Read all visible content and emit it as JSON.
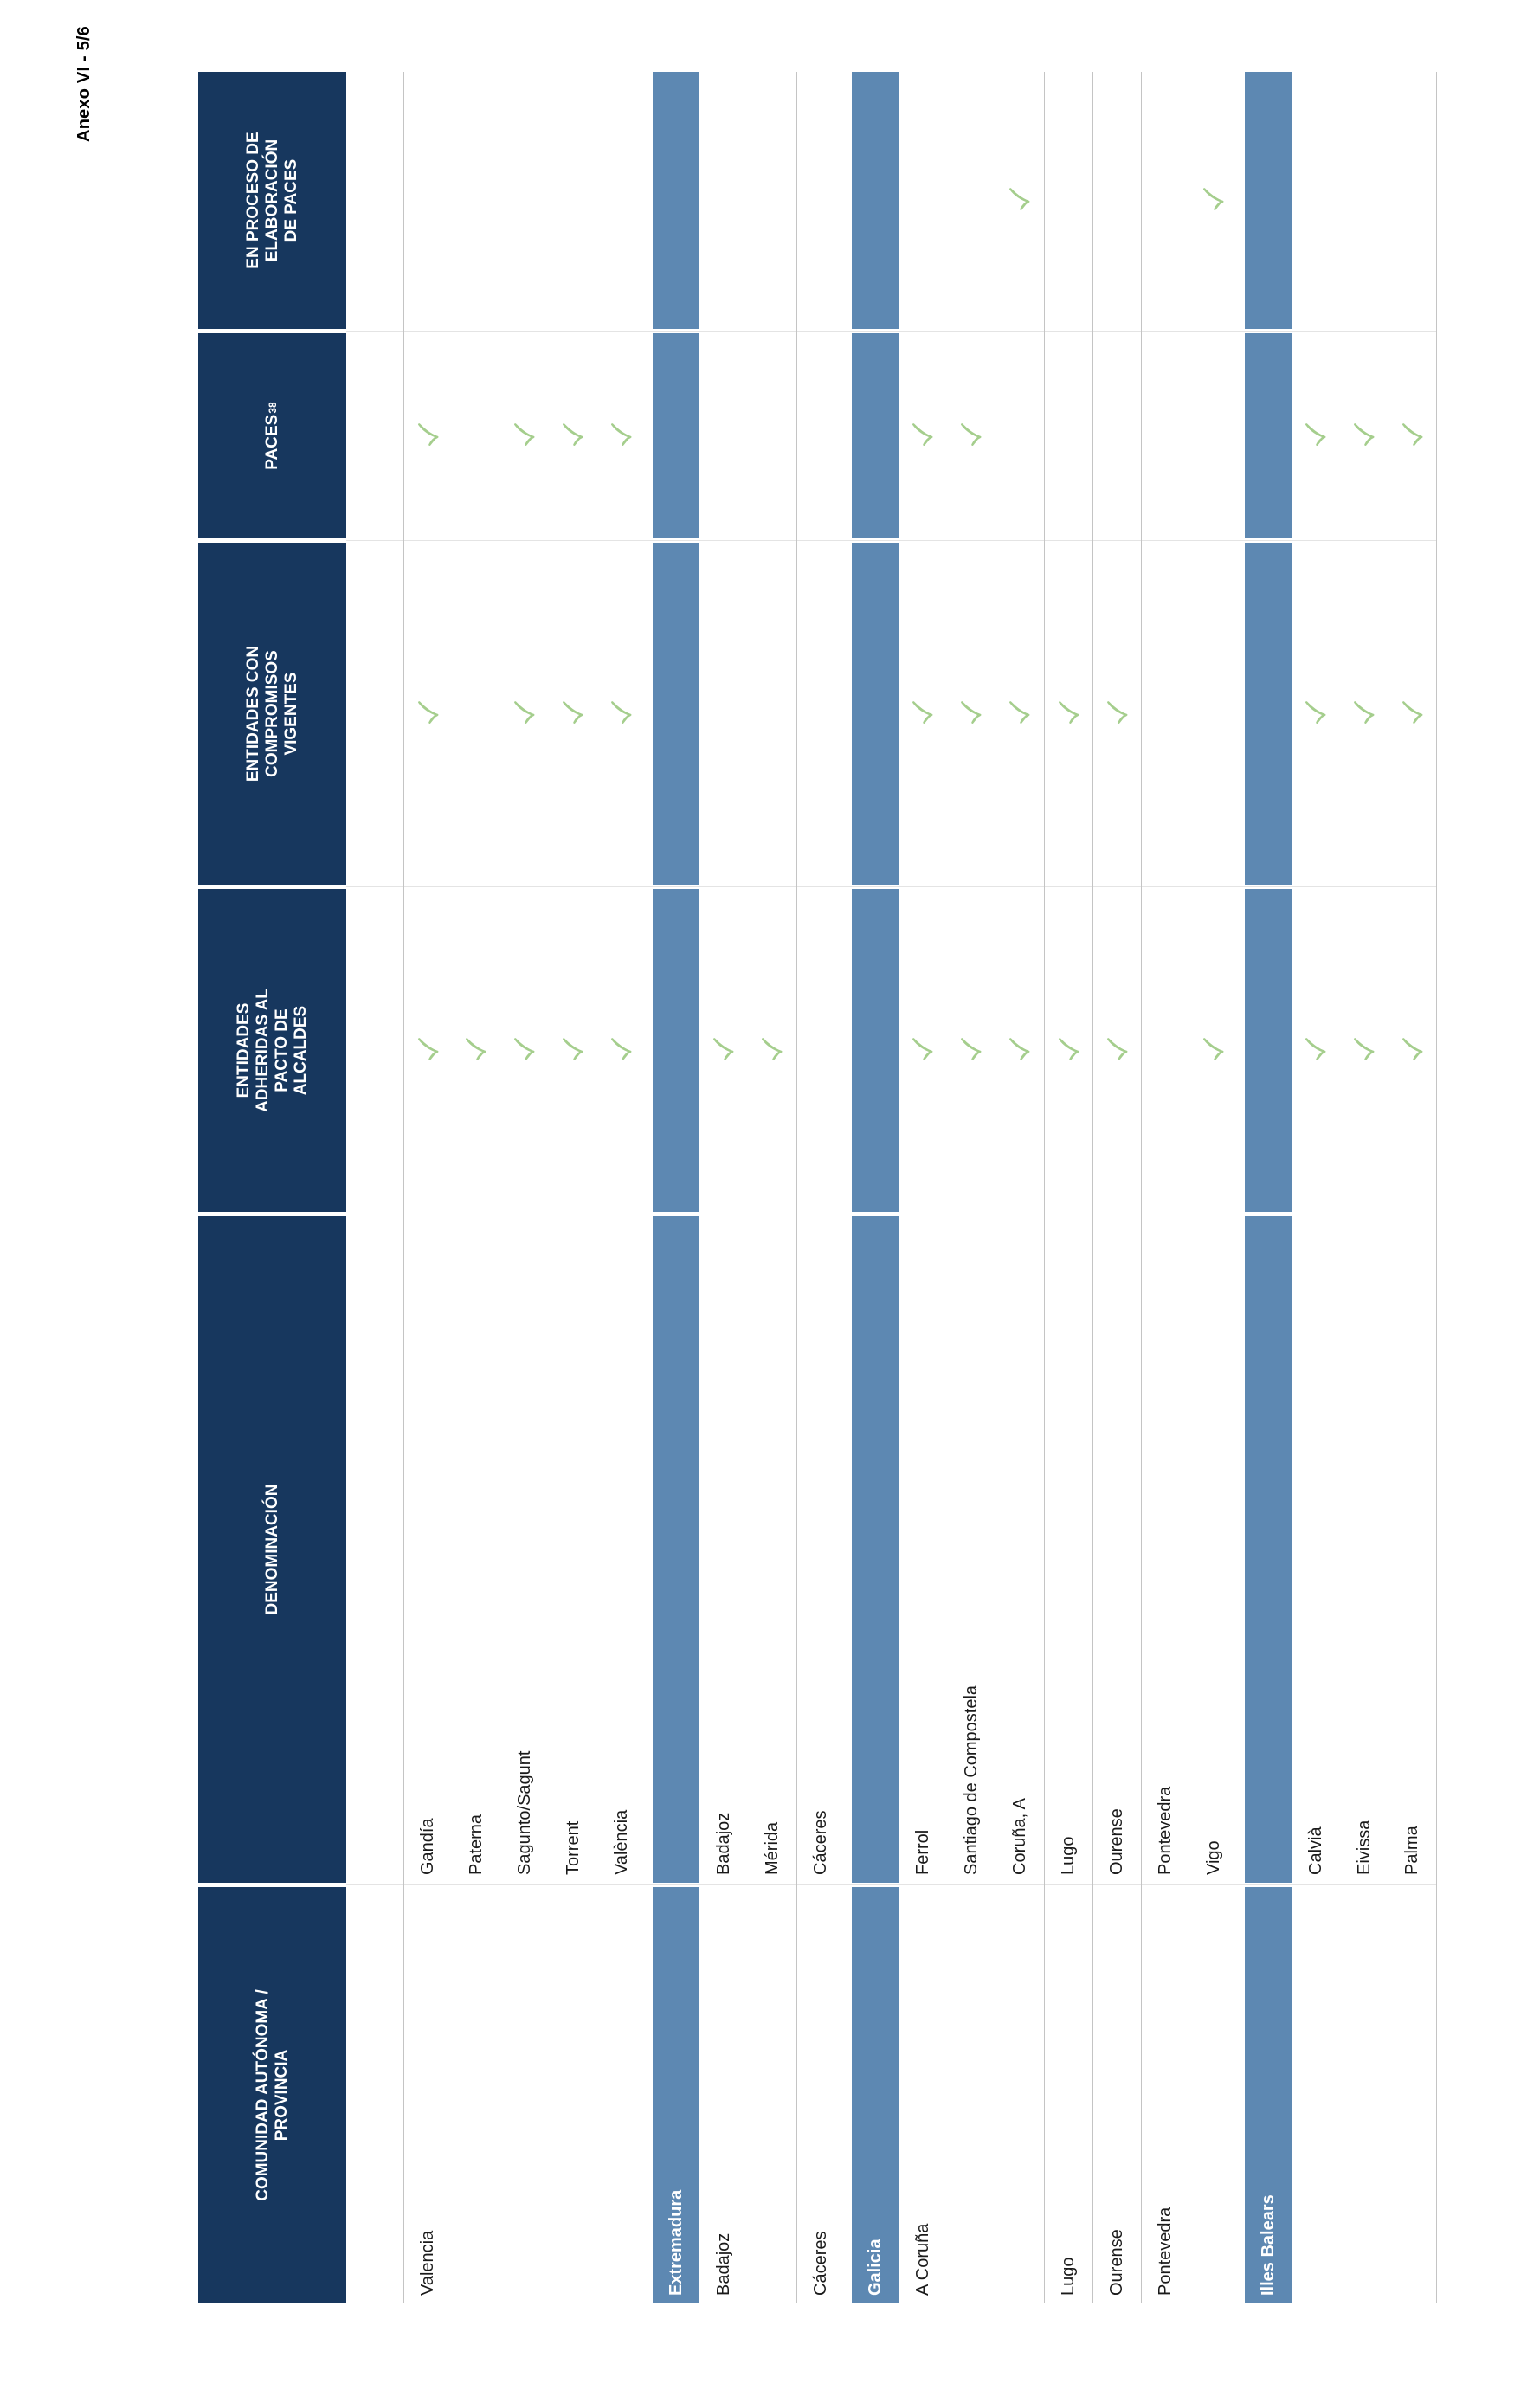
{
  "page": {
    "annex_label": "Anexo VI - 5/6"
  },
  "colors": {
    "header_navy": "#17375e",
    "section_band_blue": "#5d88b2",
    "check_green": "#a5ce8d",
    "separator_line": "#c4c4c4",
    "column_separator": "#e4e4e4",
    "text": "#1a1a1a"
  },
  "icons": {
    "check": "check-mark"
  },
  "table": {
    "columns": [
      {
        "key": "comunidad",
        "label": "COMUNIDAD AUTÓNOMA /\nPROVINCIA",
        "superscript": ""
      },
      {
        "key": "denominacion",
        "label": "DENOMINACIÓN",
        "superscript": ""
      },
      {
        "key": "adheridas",
        "label": "ENTIDADES\nADHERIDAS AL\nPACTO DE\nALCALDES",
        "superscript": ""
      },
      {
        "key": "vigentes",
        "label": "ENTIDADES CON\nCOMPROMISOS\nVIGENTES",
        "superscript": ""
      },
      {
        "key": "paces",
        "label": "PACES",
        "superscript": "38"
      },
      {
        "key": "proceso",
        "label": "EN PROCESO DE\nELABORACIÓN\nDE PACES",
        "superscript": ""
      }
    ],
    "rows": [
      {
        "type": "spacer"
      },
      {
        "type": "row",
        "comunidad": "Valencia",
        "denominacion": "Gandía",
        "adheridas": true,
        "vigentes": true,
        "paces": true,
        "proceso": false,
        "line_top": true
      },
      {
        "type": "row",
        "comunidad": "",
        "denominacion": "Paterna",
        "adheridas": true,
        "vigentes": false,
        "paces": false,
        "proceso": false
      },
      {
        "type": "row",
        "comunidad": "",
        "denominacion": "Sagunto/Sagunt",
        "adheridas": true,
        "vigentes": true,
        "paces": true,
        "proceso": false
      },
      {
        "type": "row",
        "comunidad": "",
        "denominacion": "Torrent",
        "adheridas": true,
        "vigentes": true,
        "paces": true,
        "proceso": false
      },
      {
        "type": "row",
        "comunidad": "",
        "denominacion": "València",
        "adheridas": true,
        "vigentes": true,
        "paces": true,
        "proceso": false
      },
      {
        "type": "section",
        "label": "Extremadura"
      },
      {
        "type": "row",
        "comunidad": "Badajoz",
        "denominacion": "Badajoz",
        "adheridas": true,
        "vigentes": false,
        "paces": false,
        "proceso": false
      },
      {
        "type": "row",
        "comunidad": "",
        "denominacion": "Mérida",
        "adheridas": true,
        "vigentes": false,
        "paces": false,
        "proceso": false
      },
      {
        "type": "row",
        "comunidad": "Cáceres",
        "denominacion": "Cáceres",
        "adheridas": false,
        "vigentes": false,
        "paces": false,
        "proceso": false,
        "line_top": true
      },
      {
        "type": "section",
        "label": "Galicia"
      },
      {
        "type": "row",
        "comunidad": "A Coruña",
        "denominacion": "Ferrol",
        "adheridas": true,
        "vigentes": true,
        "paces": true,
        "proceso": false
      },
      {
        "type": "row",
        "comunidad": "",
        "denominacion": "Santiago de Compostela",
        "adheridas": true,
        "vigentes": true,
        "paces": true,
        "proceso": false
      },
      {
        "type": "row",
        "comunidad": "",
        "denominacion": "Coruña, A",
        "adheridas": true,
        "vigentes": true,
        "paces": false,
        "proceso": true
      },
      {
        "type": "row",
        "comunidad": "Lugo",
        "denominacion": "Lugo",
        "adheridas": true,
        "vigentes": true,
        "paces": false,
        "proceso": false,
        "line_top": true
      },
      {
        "type": "row",
        "comunidad": "Ourense",
        "denominacion": "Ourense",
        "adheridas": true,
        "vigentes": true,
        "paces": false,
        "proceso": false,
        "line_top": true
      },
      {
        "type": "row",
        "comunidad": "Pontevedra",
        "denominacion": "Pontevedra",
        "adheridas": false,
        "vigentes": false,
        "paces": false,
        "proceso": false,
        "line_top": true
      },
      {
        "type": "row",
        "comunidad": "",
        "denominacion": "Vigo",
        "adheridas": true,
        "vigentes": false,
        "paces": false,
        "proceso": true
      },
      {
        "type": "section",
        "label": "Illes Balears"
      },
      {
        "type": "row",
        "comunidad": "",
        "denominacion": "Calvià",
        "adheridas": true,
        "vigentes": true,
        "paces": true,
        "proceso": false
      },
      {
        "type": "row",
        "comunidad": "",
        "denominacion": "Eivissa",
        "adheridas": true,
        "vigentes": true,
        "paces": true,
        "proceso": false
      },
      {
        "type": "row",
        "comunidad": "",
        "denominacion": "Palma",
        "adheridas": true,
        "vigentes": true,
        "paces": true,
        "proceso": false,
        "line_bottom": true
      }
    ]
  }
}
